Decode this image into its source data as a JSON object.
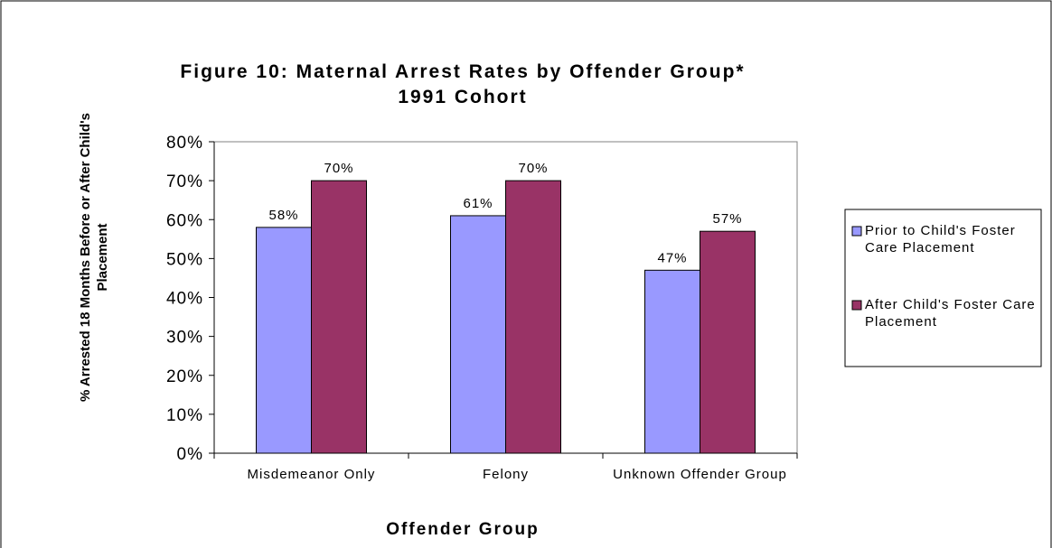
{
  "chart_data": {
    "type": "bar",
    "title": "Figure 10: Maternal Arrest Rates by Offender Group*",
    "subtitle": "1991 Cohort",
    "x_label": "Offender Group",
    "y_label": "% Arrested 18 Months Before or After Child's Placement",
    "categories": [
      "Misdemeanor Only",
      "Felony",
      "Unknown Offender Group"
    ],
    "series": [
      {
        "name": "Prior to Child's Foster Care Placement",
        "color": "#9999ff",
        "values": [
          58,
          61,
          47
        ],
        "value_labels": [
          "58%",
          "61%",
          "47%"
        ]
      },
      {
        "name": "After Child's Foster Care Placement",
        "color": "#993366",
        "values": [
          70,
          70,
          57
        ],
        "value_labels": [
          "70%",
          "70%",
          "57%"
        ]
      }
    ],
    "ylim": [
      0,
      80
    ],
    "yticks": [
      {
        "value": 0,
        "label": "0%"
      },
      {
        "value": 10,
        "label": "10%"
      },
      {
        "value": 20,
        "label": "20%"
      },
      {
        "value": 30,
        "label": "30%"
      },
      {
        "value": 40,
        "label": "40%"
      },
      {
        "value": 50,
        "label": "50%"
      },
      {
        "value": 60,
        "label": "60%"
      },
      {
        "value": 70,
        "label": "70%"
      },
      {
        "value": 80,
        "label": "80%"
      }
    ],
    "legend": "right"
  }
}
